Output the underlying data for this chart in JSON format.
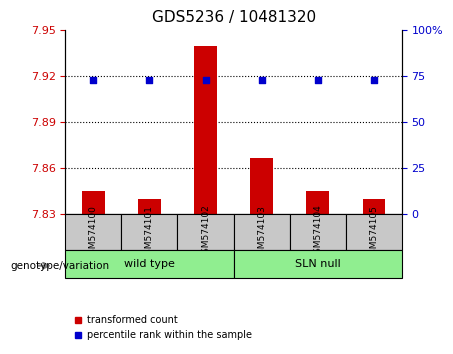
{
  "title": "GDS5236 / 10481320",
  "samples": [
    "GSM574100",
    "GSM574101",
    "GSM574102",
    "GSM574103",
    "GSM574104",
    "GSM574105"
  ],
  "groups": [
    "wild type",
    "wild type",
    "wild type",
    "SLN null",
    "SLN null",
    "SLN null"
  ],
  "group_labels": [
    "wild type",
    "SLN null"
  ],
  "group_colors": [
    "#90ee90",
    "#90ee90"
  ],
  "bar_values": [
    7.845,
    7.84,
    7.94,
    7.867,
    7.845,
    7.84
  ],
  "bar_base": 7.83,
  "dot_values": [
    73,
    73,
    73,
    73,
    73,
    73
  ],
  "ylim_left": [
    7.83,
    7.95
  ],
  "ylim_right": [
    0,
    100
  ],
  "yticks_left": [
    7.83,
    7.86,
    7.89,
    7.92,
    7.95
  ],
  "yticks_right": [
    0,
    25,
    50,
    75,
    100
  ],
  "bar_color": "#cc0000",
  "dot_color": "#0000cc",
  "grid_color": "#000000",
  "bg_color": "#ffffff",
  "label_area_color": "#c8c8c8",
  "legend_bar_label": "transformed count",
  "legend_dot_label": "percentile rank within the sample",
  "genotype_label": "genotype/variation"
}
